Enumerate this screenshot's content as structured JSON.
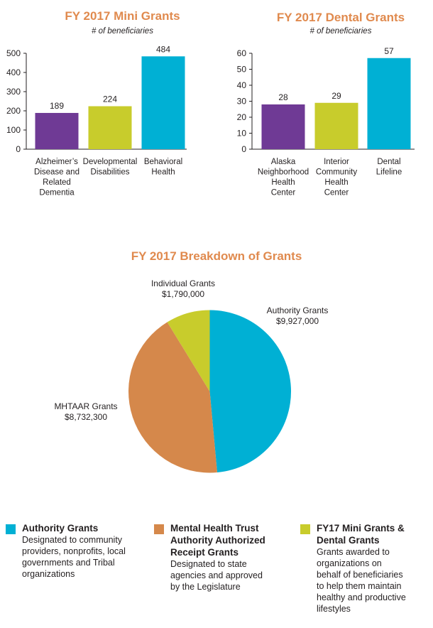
{
  "charts": {
    "mini": {
      "title": "FY 2017 Mini Grants",
      "subtitle": "# of beneficiaries"
    },
    "dental": {
      "title": "FY 2017 Dental Grants",
      "subtitle": "# of beneficiaries"
    },
    "pie": {
      "title": "FY 2017 Breakdown of Grants"
    }
  },
  "chart_data": [
    {
      "type": "bar",
      "title": "FY 2017 Mini Grants",
      "subtitle": "# of beneficiaries",
      "categories": [
        "Alzheimer's Disease and Related Dementia",
        "Developmental Disabilities",
        "Behavioral Health"
      ],
      "category_lines": [
        [
          "Alzheimer’s",
          "Disease and",
          "Related",
          "Dementia"
        ],
        [
          "Developmental",
          "Disabilities"
        ],
        [
          "Behavioral",
          "Health"
        ]
      ],
      "values": [
        189,
        224,
        484
      ],
      "colors": [
        "#6f3a95",
        "#c8cc2c",
        "#00b0d4"
      ],
      "ylim": [
        0,
        500
      ],
      "yticks": [
        0,
        100,
        200,
        300,
        400,
        500
      ]
    },
    {
      "type": "bar",
      "title": "FY 2017 Dental Grants",
      "subtitle": "# of beneficiaries",
      "categories": [
        "Alaska Neighborhood Health Center",
        "Interior Community Health Center",
        "Dental Lifeline"
      ],
      "category_lines": [
        [
          "Alaska",
          "Neighborhood",
          "Health",
          "Center"
        ],
        [
          "Interior",
          "Community",
          "Health",
          "Center"
        ],
        [
          "Dental",
          "Lifeline"
        ]
      ],
      "values": [
        28,
        29,
        57
      ],
      "colors": [
        "#6f3a95",
        "#c8cc2c",
        "#00b0d4"
      ],
      "ylim": [
        0,
        60
      ],
      "yticks": [
        0,
        10,
        20,
        30,
        40,
        50,
        60
      ]
    },
    {
      "type": "pie",
      "title": "FY 2017 Breakdown of Grants",
      "slices": [
        {
          "label": "Authority Grants",
          "value_label": "$9,927,000",
          "value": 9927000,
          "color": "#00b0d4"
        },
        {
          "label": "MHTAAR Grants",
          "value_label": "$8,732,300",
          "value": 8732300,
          "color": "#d5884b"
        },
        {
          "label": "Individual Grants",
          "value_label": "$1,790,000",
          "value": 1790000,
          "color": "#c8cc2c"
        }
      ]
    }
  ],
  "legend": [
    {
      "title_lines": [
        "Authority Grants"
      ],
      "desc_lines": [
        "Designated to community",
        "providers, nonprofits, local",
        "governments and Tribal",
        "organizations"
      ],
      "color": "#00b0d4"
    },
    {
      "title_lines": [
        "Mental Health Trust",
        "Authority Authorized",
        "Receipt Grants"
      ],
      "desc_lines": [
        "Designated to state",
        "agencies and approved",
        "by the Legislature"
      ],
      "color": "#d5884b"
    },
    {
      "title_lines": [
        "FY17 Mini Grants &",
        "Dental Grants"
      ],
      "desc_lines": [
        "Grants awarded to",
        "organizations on",
        "behalf of beneficiaries",
        "to help them maintain",
        "healthy and productive",
        "lifestyles"
      ],
      "color": "#c8cc2c"
    }
  ]
}
